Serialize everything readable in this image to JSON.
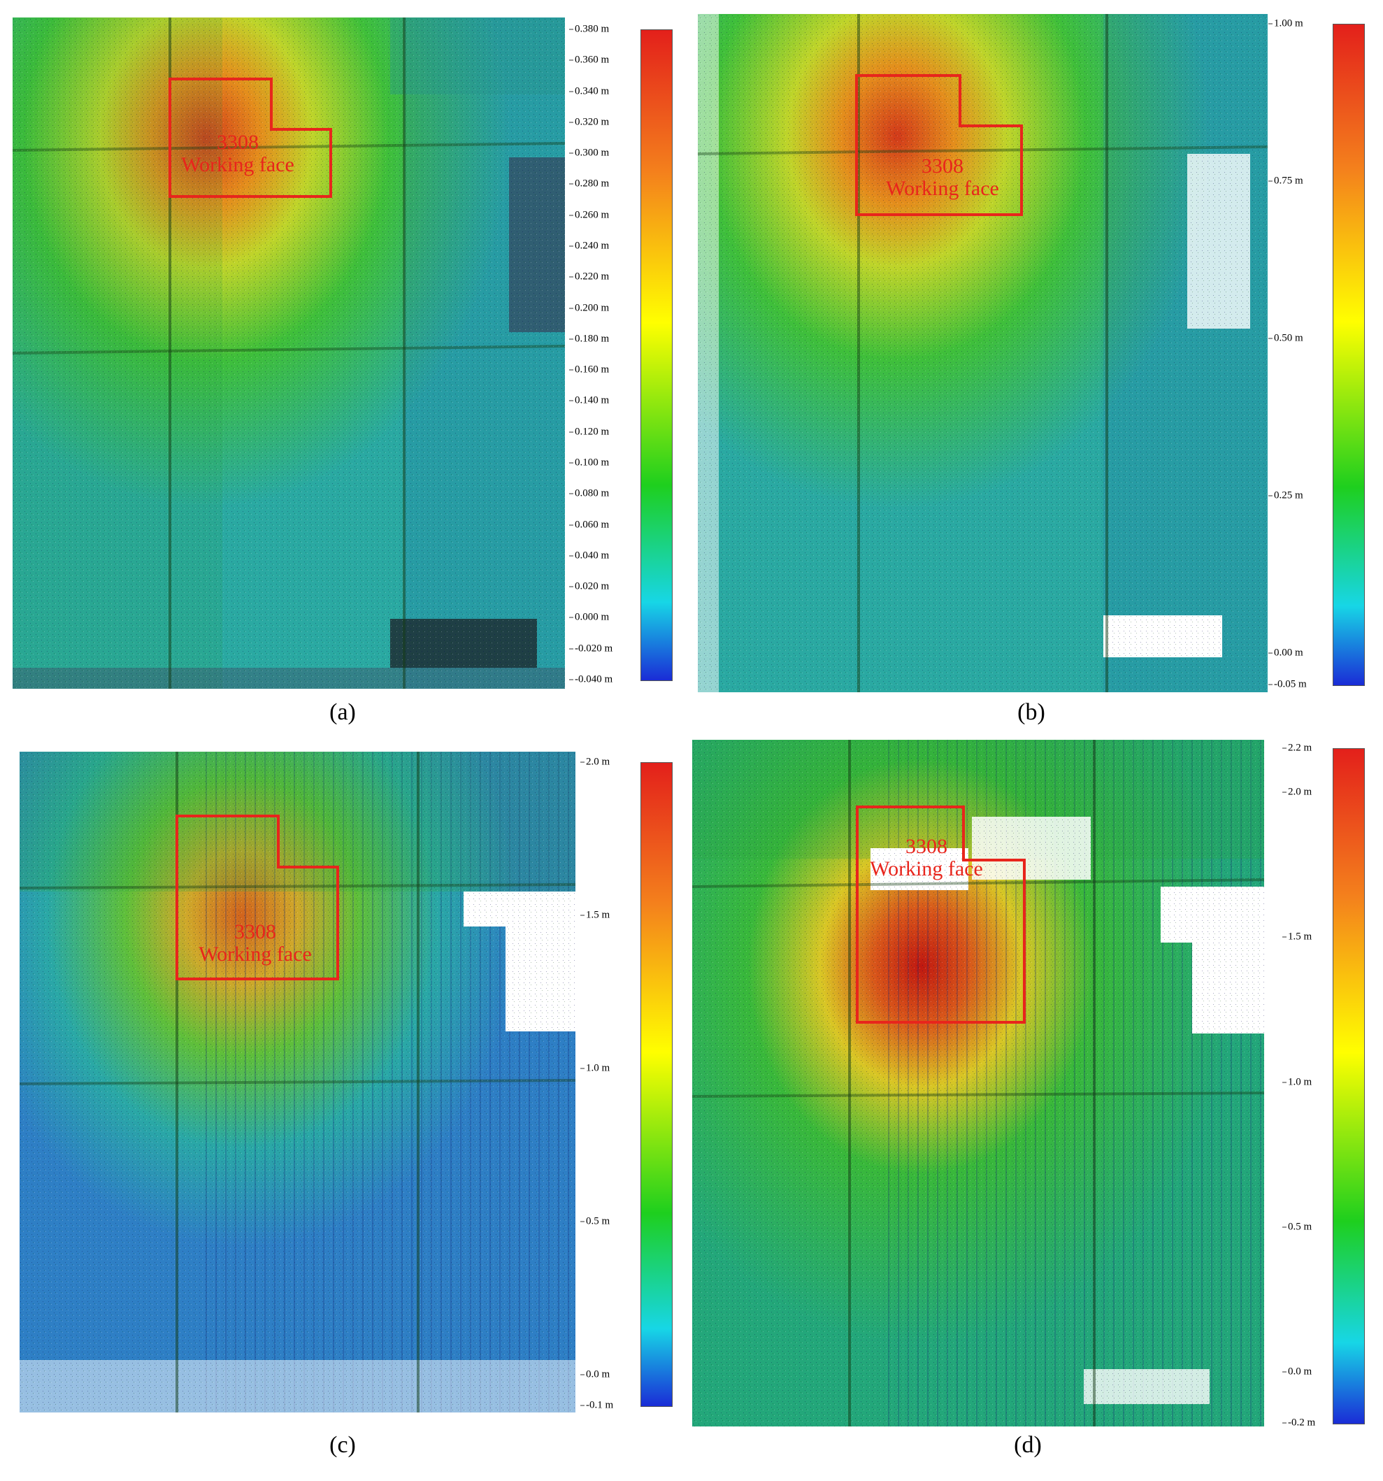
{
  "panels": [
    {
      "caption": "(a)",
      "label_number": "3308",
      "label_text": "Working face",
      "colorbar_ticks": [
        "0.380 m",
        "0.360 m",
        "0.340 m",
        "0.320 m",
        "0.300 m",
        "0.280 m",
        "0.260 m",
        "0.240 m",
        "0.220 m",
        "0.200 m",
        "0.180 m",
        "0.160 m",
        "0.140 m",
        "0.120 m",
        "0.100 m",
        "0.080 m",
        "0.060 m",
        "0.040 m",
        "0.020 m",
        "0.000 m",
        "-0.020 m",
        "-0.040 m"
      ]
    },
    {
      "caption": "(b)",
      "label_number": "3308",
      "label_text": "Working face",
      "colorbar_ticks": [
        "1.00 m",
        "0.75 m",
        "0.50 m",
        "0.25 m",
        "0.00 m",
        "-0.05 m"
      ]
    },
    {
      "caption": "(c)",
      "label_number": "3308",
      "label_text": "Working face",
      "colorbar_ticks": [
        "2.0 m",
        "1.5 m",
        "1.0 m",
        "0.5 m",
        "0.0 m",
        "-0.1 m"
      ]
    },
    {
      "caption": "(d)",
      "label_number": "3308",
      "label_text": "Working face",
      "colorbar_ticks": [
        "2.2 m",
        "2.0 m",
        "1.5 m",
        "1.0 m",
        "0.5 m",
        "0.0 m",
        "-0.2 m"
      ]
    }
  ],
  "colors": {
    "working_face_outline": "#e8251c",
    "colorbar_top": "#e8251c",
    "colorbar_mid": "#ffff00",
    "colorbar_green": "#22c322",
    "colorbar_cyan": "#19d3e3",
    "colorbar_bottom": "#1a2cd6"
  },
  "icons": {
    "map": "subsidence-map-image",
    "colorbar": "color-scale-bar"
  }
}
